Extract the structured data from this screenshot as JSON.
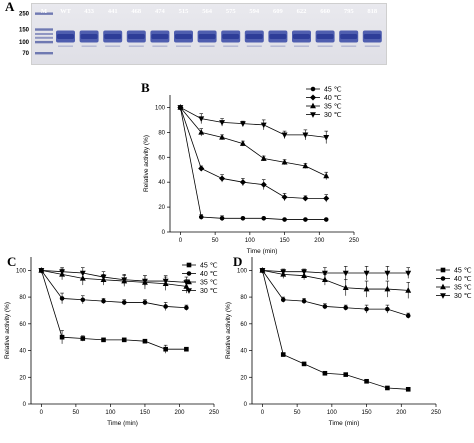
{
  "gel": {
    "panel_label": "A",
    "lanes": [
      "M",
      "WT",
      "433",
      "441",
      "468",
      "474",
      "515",
      "564",
      "575",
      "594",
      "609",
      "622",
      "660",
      "795",
      "818"
    ],
    "marker_sizes": [
      "250",
      "150",
      "100",
      "70"
    ],
    "marker_levels": [
      250,
      150,
      100,
      70
    ]
  },
  "chart_data": [
    {
      "panel_label": "B",
      "type": "line",
      "xlabel": "Time (min)",
      "ylabel": "Relative activity (%)",
      "xlim": [
        -15,
        250
      ],
      "ylim": [
        0,
        110
      ],
      "xticks": [
        0,
        50,
        100,
        150,
        200,
        250
      ],
      "yticks": [
        0,
        20,
        40,
        60,
        80,
        100
      ],
      "legend_position": "top-right",
      "x": [
        0,
        30,
        60,
        90,
        120,
        150,
        180,
        210
      ],
      "series": [
        {
          "name": "45 ℃",
          "marker": "circle",
          "values": [
            100,
            12,
            11,
            11,
            11,
            10,
            10,
            10
          ],
          "errors": [
            0,
            2,
            2,
            1,
            1,
            1,
            1,
            1
          ]
        },
        {
          "name": "40 ℃",
          "marker": "diamond",
          "values": [
            100,
            51,
            43,
            40,
            38,
            28,
            27,
            27
          ],
          "errors": [
            0,
            2,
            3,
            3,
            4,
            3,
            2,
            3
          ]
        },
        {
          "name": "35 ℃",
          "marker": "triangle-up",
          "values": [
            100,
            80,
            76,
            71,
            59,
            56,
            53,
            45
          ],
          "errors": [
            0,
            3,
            2,
            2,
            2,
            2,
            2,
            3
          ]
        },
        {
          "name": "30 ℃",
          "marker": "triangle-down",
          "values": [
            100,
            91,
            88,
            87,
            86,
            78,
            78,
            76
          ],
          "errors": [
            0,
            4,
            3,
            2,
            4,
            3,
            4,
            5
          ]
        }
      ]
    },
    {
      "panel_label": "C",
      "type": "line",
      "xlabel": "Time (min)",
      "ylabel": "Relative activity (%)",
      "xlim": [
        -15,
        250
      ],
      "ylim": [
        0,
        110
      ],
      "xticks": [
        0,
        50,
        100,
        150,
        200,
        250
      ],
      "yticks": [
        0,
        20,
        40,
        60,
        80,
        100
      ],
      "legend_position": "top-right",
      "x": [
        0,
        30,
        60,
        90,
        120,
        150,
        180,
        210
      ],
      "series": [
        {
          "name": "45 ℃",
          "marker": "square",
          "values": [
            100,
            50,
            49,
            48,
            48,
            47,
            41,
            41
          ],
          "errors": [
            0,
            5,
            2,
            1,
            1,
            1,
            3,
            1
          ]
        },
        {
          "name": "40 ℃",
          "marker": "circle",
          "values": [
            100,
            79,
            78,
            77,
            76,
            76,
            73,
            72
          ],
          "errors": [
            0,
            4,
            3,
            2,
            2,
            2,
            3,
            2
          ]
        },
        {
          "name": "35 ℃",
          "marker": "triangle-up",
          "values": [
            100,
            97,
            94,
            93,
            92,
            91,
            90,
            88
          ],
          "errors": [
            0,
            4,
            5,
            4,
            4,
            5,
            5,
            5
          ]
        },
        {
          "name": "30 ℃",
          "marker": "triangle-down",
          "values": [
            100,
            99,
            98,
            95,
            93,
            92,
            92,
            91
          ],
          "errors": [
            0,
            3,
            4,
            4,
            4,
            4,
            4,
            4
          ]
        }
      ]
    },
    {
      "panel_label": "D",
      "type": "line",
      "xlabel": "Time (min)",
      "ylabel": "Relative activity (%)",
      "xlim": [
        -15,
        250
      ],
      "ylim": [
        0,
        110
      ],
      "xticks": [
        0,
        50,
        100,
        150,
        200,
        250
      ],
      "yticks": [
        0,
        20,
        40,
        60,
        80,
        100
      ],
      "legend_position": "top-right",
      "x": [
        0,
        30,
        60,
        90,
        120,
        150,
        180,
        210
      ],
      "series": [
        {
          "name": "45 ℃",
          "marker": "square",
          "values": [
            100,
            37,
            30,
            23,
            22,
            17,
            12,
            11
          ],
          "errors": [
            0,
            1,
            1,
            1,
            1,
            1,
            1,
            1
          ]
        },
        {
          "name": "40 ℃",
          "marker": "circle",
          "values": [
            100,
            78,
            77,
            73,
            72,
            71,
            71,
            66
          ],
          "errors": [
            0,
            2,
            2,
            2,
            2,
            3,
            3,
            2
          ]
        },
        {
          "name": "35 ℃",
          "marker": "triangle-up",
          "values": [
            100,
            97,
            96,
            93,
            87,
            86,
            86,
            85
          ],
          "errors": [
            0,
            3,
            3,
            4,
            6,
            6,
            6,
            6
          ]
        },
        {
          "name": "30 ℃",
          "marker": "triangle-down",
          "values": [
            100,
            99,
            99,
            98,
            98,
            98,
            98,
            98
          ],
          "errors": [
            0,
            2,
            2,
            4,
            5,
            5,
            5,
            4
          ]
        }
      ]
    }
  ]
}
